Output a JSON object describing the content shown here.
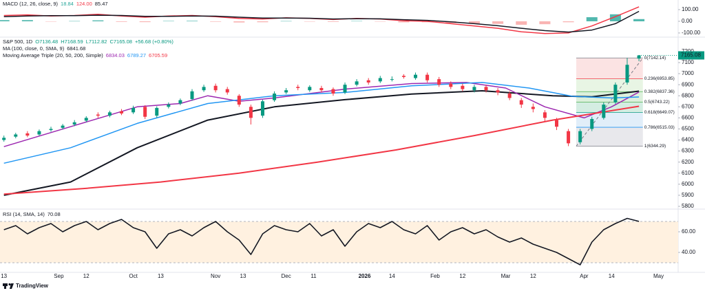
{
  "chart_data": [
    {
      "type": "macd",
      "title": "MACD (12, 26, close, 9)",
      "header_values": [
        18.84,
        {
          "value": 124,
          "label": "124.00"
        },
        85.47
      ],
      "header_colors": [
        "#26a69a",
        "#f23645",
        "#131722"
      ],
      "xlim": [
        -1,
        172
      ],
      "ylim": [
        -124,
        153
      ],
      "yticks": [
        {
          "value": 100,
          "label": "100.00"
        },
        {
          "value": 0,
          "label": "0.00"
        },
        {
          "value": -100,
          "label": "-100.00"
        }
      ],
      "x": [
        0,
        6,
        12,
        18,
        24,
        30,
        36,
        42,
        48,
        54,
        60,
        66,
        72,
        78,
        84,
        90,
        96,
        102,
        108,
        114,
        120,
        126,
        132,
        138,
        144,
        150,
        156,
        162
      ],
      "series": [
        {
          "color": "#f23645",
          "values": [
            50,
            55,
            45,
            50,
            60,
            45,
            35,
            45,
            50,
            40,
            25,
            20,
            30,
            25,
            15,
            25,
            20,
            5,
            0,
            -20,
            -40,
            -60,
            -90,
            -105,
            -100,
            -40,
            40,
            124
          ]
        },
        {
          "color": "#131722",
          "values": [
            40,
            45,
            48,
            48,
            52,
            50,
            42,
            42,
            46,
            44,
            35,
            28,
            28,
            26,
            20,
            22,
            21,
            14,
            8,
            -5,
            -20,
            -38,
            -60,
            -80,
            -92,
            -75,
            -20,
            85.47
          ]
        }
      ],
      "histogram": {
        "up_color": "#26a69a",
        "down_color": "#f7a1a0",
        "values": [
          10,
          10,
          -3,
          2,
          8,
          -5,
          -7,
          3,
          4,
          -4,
          -10,
          -8,
          2,
          -1,
          -5,
          3,
          -1,
          -9,
          -8,
          -15,
          -20,
          -22,
          -30,
          -25,
          -8,
          35,
          60,
          18.84
        ]
      }
    },
    {
      "type": "candlestick",
      "title": "S&P 500, 1D",
      "ohlc": [
        "O7136.48",
        "H7168.59",
        "L7112.82",
        "C7165.08",
        "+56.68 (+0.80%)"
      ],
      "ohlc_color": "#089981",
      "up_color": "#089981",
      "down_color": "#f23645",
      "xlim": [
        -1,
        172
      ],
      "ylim": [
        5800,
        7243
      ],
      "yticks": [
        7200,
        7100,
        7000,
        6900,
        6800,
        6700,
        6600,
        6500,
        6400,
        6300,
        6200,
        6100,
        6000,
        5900,
        5800
      ],
      "last_price": 7165.08,
      "last_color": "#089981",
      "x": [
        0,
        3,
        6,
        9,
        12,
        15,
        18,
        21,
        24,
        27,
        30,
        33,
        36,
        39,
        42,
        45,
        48,
        51,
        54,
        57,
        60,
        63,
        66,
        69,
        72,
        75,
        78,
        81,
        84,
        87,
        90,
        93,
        96,
        99,
        102,
        105,
        108,
        111,
        114,
        117,
        120,
        123,
        126,
        129,
        132,
        135,
        138,
        141,
        144,
        147,
        150,
        153,
        156,
        159,
        162
      ],
      "open": [
        6400,
        6430,
        6460,
        6450,
        6490,
        6510,
        6540,
        6575,
        6630,
        6620,
        6660,
        6650,
        6700,
        6620,
        6700,
        6730,
        6770,
        6850,
        6890,
        6860,
        6800,
        6700,
        6620,
        6760,
        6830,
        6880,
        6850,
        6870,
        6860,
        6830,
        6900,
        6940,
        6930,
        6950,
        6980,
        6960,
        6990,
        6950,
        6910,
        6890,
        6850,
        6880,
        6850,
        6820,
        6760,
        6700,
        6650,
        6580,
        6480,
        6380,
        6500,
        6600,
        6740,
        6920,
        7136.48
      ],
      "high": [
        6440,
        6465,
        6480,
        6495,
        6520,
        6545,
        6580,
        6615,
        6650,
        6665,
        6680,
        6710,
        6715,
        6705,
        6740,
        6775,
        6860,
        6900,
        6910,
        6880,
        6815,
        6720,
        6765,
        6840,
        6870,
        6900,
        6895,
        6890,
        6875,
        6920,
        6950,
        6960,
        6980,
        6975,
        6995,
        7010,
        7010,
        6970,
        6930,
        6910,
        6900,
        6900,
        6870,
        6840,
        6780,
        6730,
        6670,
        6600,
        6500,
        6500,
        6610,
        6740,
        6920,
        7142.14,
        7168.59
      ],
      "low": [
        6385,
        6415,
        6425,
        6440,
        6475,
        6495,
        6525,
        6560,
        6600,
        6605,
        6625,
        6635,
        6590,
        6600,
        6685,
        6715,
        6755,
        6835,
        6830,
        6810,
        6700,
        6540,
        6600,
        6745,
        6815,
        6850,
        6835,
        6830,
        6800,
        6815,
        6885,
        6900,
        6915,
        6930,
        6955,
        6945,
        6920,
        6880,
        6860,
        6840,
        6830,
        6830,
        6805,
        6760,
        6690,
        6650,
        6570,
        6490,
        6344.29,
        6360,
        6480,
        6585,
        6725,
        6900,
        7112.82
      ],
      "close": [
        6420,
        6450,
        6440,
        6480,
        6500,
        6530,
        6560,
        6600,
        6620,
        6650,
        6640,
        6690,
        6610,
        6690,
        6720,
        6760,
        6840,
        6880,
        6850,
        6830,
        6720,
        6600,
        6750,
        6820,
        6850,
        6870,
        6880,
        6850,
        6820,
        6900,
        6930,
        6920,
        6960,
        6950,
        6970,
        6990,
        6940,
        6900,
        6880,
        6860,
        6880,
        6850,
        6830,
        6780,
        6720,
        6680,
        6600,
        6520,
        6370,
        6480,
        6590,
        6720,
        6900,
        7080,
        7165.08
      ],
      "indicators": [
        {
          "label": "MA (100, close, 0, SMA, 9)",
          "values": [
            6841.68
          ],
          "lines": [
            {
              "color": "#131722",
              "width": 2,
              "x": [
                0,
                17,
                34,
                52,
                69,
                87,
                104,
                122,
                140,
                150,
                162
              ],
              "values": [
                5900,
                6020,
                6330,
                6580,
                6700,
                6765,
                6815,
                6845,
                6800,
                6790,
                6842
              ]
            }
          ]
        },
        {
          "label": "Moving Average Triple (20, 50, 200, Simple)",
          "values": [
            6834.03,
            6789.27,
            6705.59
          ],
          "lines": [
            {
              "color": "#9c27b0",
              "width": 1.5,
              "x": [
                0,
                17,
                34,
                45,
                52,
                60,
                69,
                87,
                104,
                118,
                128,
                138,
                148,
                155,
                162
              ],
              "values": [
                6340,
                6520,
                6700,
                6730,
                6800,
                6750,
                6780,
                6860,
                6910,
                6920,
                6870,
                6700,
                6600,
                6700,
                6834
              ]
            },
            {
              "color": "#2196f3",
              "width": 1.5,
              "x": [
                0,
                17,
                34,
                52,
                69,
                87,
                104,
                122,
                134,
                145,
                155,
                162
              ],
              "values": [
                6190,
                6330,
                6550,
                6730,
                6800,
                6830,
                6890,
                6920,
                6870,
                6795,
                6780,
                6789
              ]
            },
            {
              "color": "#f23645",
              "width": 2,
              "x": [
                0,
                20,
                40,
                60,
                80,
                100,
                120,
                140,
                162
              ],
              "values": [
                5910,
                5960,
                6020,
                6100,
                6200,
                6310,
                6440,
                6580,
                6705
              ]
            }
          ]
        }
      ],
      "fib": {
        "x": [
          146,
          163
        ],
        "levels": [
          {
            "value": 7142.14,
            "label": "0(7142.14)",
            "color": "#787b86",
            "fill": "#fbe3e3"
          },
          {
            "value": 6953.85,
            "label": "0.236(6953.85)",
            "color": "#f23645",
            "fill": "#e8f5e4"
          },
          {
            "value": 6837.36,
            "label": "0.382(6837.36)",
            "color": "#4caf50",
            "fill": "#dcf0dc"
          },
          {
            "value": 6743.22,
            "label": "0.5(6743.22)",
            "color": "#4caf50",
            "fill": "#d4ede2"
          },
          {
            "value": 6649.07,
            "label": "0.618(6649.07)",
            "color": "#089981",
            "fill": "#e1eef9"
          },
          {
            "value": 6515.03,
            "label": "0.786(6515.03)",
            "color": "#2196f3",
            "fill": "#e8e8ec"
          },
          {
            "value": 6344.29,
            "label": "1(6344.29)",
            "color": "#787b86",
            "fill": "#ffffff"
          }
        ]
      }
    },
    {
      "type": "line",
      "title": "RSI (14, SMA, 14)",
      "header_values": [
        70.08
      ],
      "color": "#131722",
      "xlim": [
        -1,
        172
      ],
      "ylim": [
        22,
        78
      ],
      "yticks": [
        {
          "value": 60,
          "label": "60.00"
        },
        {
          "value": 40,
          "label": "40.00"
        }
      ],
      "bands": [
        70,
        30
      ],
      "band_fill": "#fff1e0",
      "xticks": [
        {
          "value": 0,
          "label": "13"
        },
        {
          "value": 14,
          "label": "Sep"
        },
        {
          "value": 21,
          "label": "12"
        },
        {
          "value": 33,
          "label": "Oct"
        },
        {
          "value": 40,
          "label": "13"
        },
        {
          "value": 54,
          "label": "Nov"
        },
        {
          "value": 61,
          "label": "13"
        },
        {
          "value": 72,
          "label": "Dec"
        },
        {
          "value": 79,
          "label": "11"
        },
        {
          "value": 92,
          "label": "2026",
          "bold": true
        },
        {
          "value": 99,
          "label": "14"
        },
        {
          "value": 110,
          "label": "Feb"
        },
        {
          "value": 117,
          "label": "12"
        },
        {
          "value": 128,
          "label": "Mar"
        },
        {
          "value": 135,
          "label": "12"
        },
        {
          "value": 148,
          "label": "Apr"
        },
        {
          "value": 155,
          "label": "14"
        },
        {
          "value": 167,
          "label": "May"
        }
      ],
      "x": [
        0,
        3,
        6,
        9,
        12,
        15,
        18,
        21,
        24,
        27,
        30,
        33,
        36,
        39,
        42,
        45,
        48,
        51,
        54,
        57,
        60,
        63,
        66,
        69,
        72,
        75,
        78,
        81,
        84,
        87,
        90,
        93,
        96,
        99,
        102,
        105,
        108,
        111,
        114,
        117,
        120,
        123,
        126,
        129,
        132,
        135,
        138,
        141,
        144,
        147,
        150,
        153,
        156,
        159,
        162
      ],
      "values": [
        62,
        66,
        58,
        64,
        68,
        60,
        66,
        70,
        62,
        68,
        72,
        64,
        60,
        44,
        58,
        62,
        56,
        64,
        70,
        60,
        52,
        38,
        58,
        66,
        62,
        60,
        68,
        56,
        62,
        46,
        60,
        68,
        64,
        70,
        62,
        58,
        66,
        52,
        60,
        64,
        58,
        62,
        55,
        50,
        54,
        48,
        44,
        40,
        34,
        28,
        50,
        62,
        68,
        73,
        70.08
      ]
    }
  ],
  "footer": {
    "brand": "TradingView"
  }
}
